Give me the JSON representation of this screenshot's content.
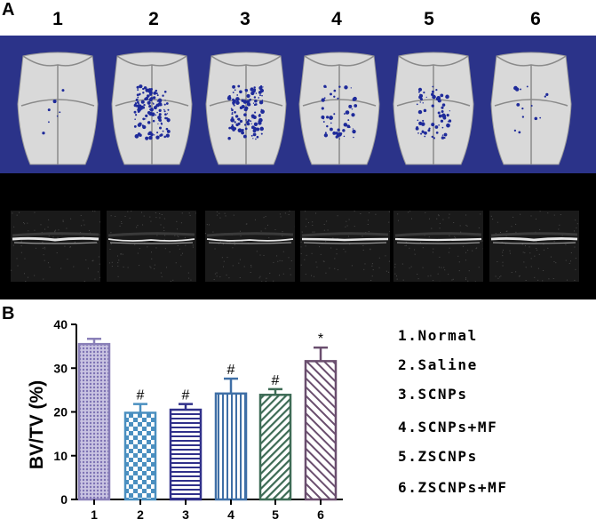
{
  "panel_a": {
    "label": "A",
    "columns": [
      "1",
      "2",
      "3",
      "4",
      "5",
      "6"
    ],
    "defect_severity": [
      0.05,
      0.9,
      0.85,
      0.35,
      0.45,
      0.1
    ],
    "colors": {
      "background": "#2b3389",
      "bone": "#d9d9d9",
      "defect": "#1e2a9a"
    }
  },
  "panel_b": {
    "label": "B"
  },
  "chart_data": {
    "type": "bar",
    "ylabel": "BV/TV (%)",
    "xlabel": "",
    "ylim": [
      0,
      40
    ],
    "yticks": [
      "0",
      "10",
      "20",
      "30",
      "40"
    ],
    "categories": [
      "1",
      "2",
      "3",
      "4",
      "5",
      "6"
    ],
    "values": [
      35.5,
      19.8,
      20.5,
      24.2,
      23.9,
      31.6
    ],
    "errors": [
      1.2,
      2.0,
      1.3,
      3.4,
      1.3,
      3.1
    ],
    "annotations": [
      "",
      "#",
      "#",
      "#",
      "#",
      "*"
    ],
    "bar_colors": [
      "#8a80b8",
      "#4a8fc0",
      "#30308a",
      "#3f6fa6",
      "#3d6b55",
      "#6a4e6e"
    ],
    "legend": [
      "1.Normal",
      "2.Saline",
      "3.SCNPs",
      "4.SCNPs+MF",
      "5.ZSCNPs",
      "6.ZSCNPs+MF"
    ],
    "grid": false
  }
}
